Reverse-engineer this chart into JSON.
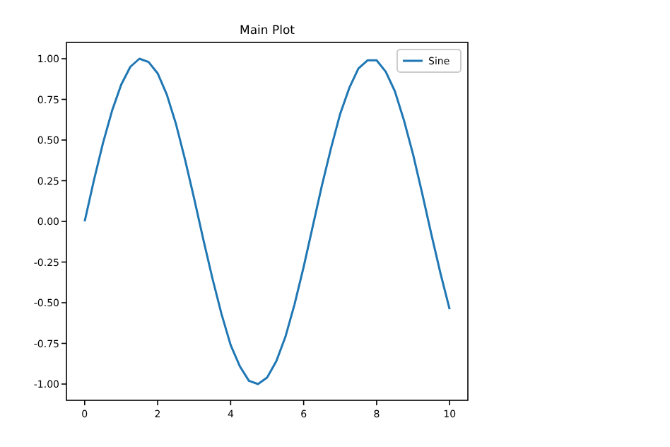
{
  "chart_data": {
    "type": "line",
    "title": "Main Plot",
    "x": [
      0,
      0.25,
      0.5,
      0.75,
      1,
      1.25,
      1.5,
      1.75,
      2,
      2.25,
      2.5,
      2.75,
      3,
      3.25,
      3.5,
      3.75,
      4,
      4.25,
      4.5,
      4.75,
      5,
      5.25,
      5.5,
      5.75,
      6,
      6.25,
      6.5,
      6.75,
      7,
      7.25,
      7.5,
      7.75,
      8,
      8.25,
      8.5,
      8.75,
      9,
      9.25,
      9.5,
      9.75,
      10
    ],
    "series": [
      {
        "name": "Sine",
        "color": "#1f77b4",
        "values": [
          0,
          0.25,
          0.48,
          0.68,
          0.84,
          0.95,
          1.0,
          0.98,
          0.91,
          0.78,
          0.6,
          0.38,
          0.14,
          -0.11,
          -0.35,
          -0.57,
          -0.76,
          -0.89,
          -0.98,
          -1.0,
          -0.96,
          -0.86,
          -0.71,
          -0.51,
          -0.28,
          -0.03,
          0.22,
          0.45,
          0.66,
          0.82,
          0.94,
          0.99,
          0.99,
          0.92,
          0.8,
          0.62,
          0.41,
          0.17,
          -0.08,
          -0.32,
          -0.54
        ]
      }
    ],
    "xlim": [
      -0.5,
      10.5
    ],
    "xticks": [
      0,
      2,
      4,
      6,
      8,
      10
    ],
    "ylim": [
      -1.1,
      1.1
    ],
    "yticks": [
      {
        "value": -1,
        "label": "-1.00"
      },
      {
        "value": -0.75,
        "label": "-0.75"
      },
      {
        "value": -0.5,
        "label": "-0.50"
      },
      {
        "value": -0.25,
        "label": "-0.25"
      },
      {
        "value": 0,
        "label": "0.00"
      },
      {
        "value": 0.25,
        "label": "0.25"
      },
      {
        "value": 0.5,
        "label": "0.50"
      },
      {
        "value": 0.75,
        "label": "0.75"
      },
      {
        "value": 1,
        "label": "1.00"
      }
    ],
    "legend": "top right",
    "grid": false,
    "line_style": "solid"
  }
}
